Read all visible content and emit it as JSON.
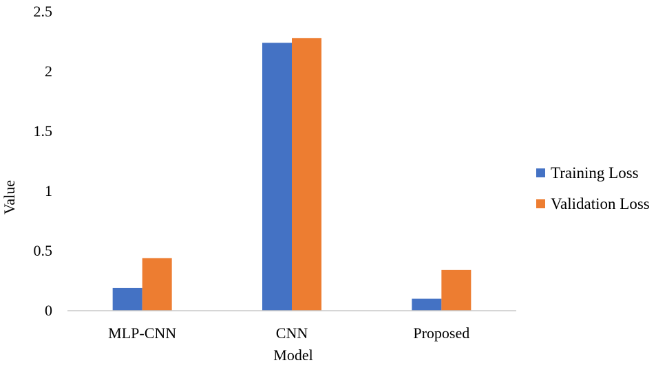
{
  "chart_data": {
    "type": "bar",
    "categories": [
      "MLP-CNN",
      "CNN",
      "Proposed"
    ],
    "series": [
      {
        "name": "Training Loss",
        "color": "#4472C4",
        "values": [
          0.19,
          2.24,
          0.1
        ]
      },
      {
        "name": "Validation Loss",
        "color": "#ED7D31",
        "values": [
          0.44,
          2.28,
          0.34
        ]
      }
    ],
    "xlabel": "Model",
    "ylabel": "Value",
    "ylim": [
      0,
      2.5
    ],
    "yticks": [
      "0",
      "0.5",
      "1",
      "1.5",
      "2",
      "2.5"
    ],
    "grid": false,
    "legend_position": "right"
  }
}
